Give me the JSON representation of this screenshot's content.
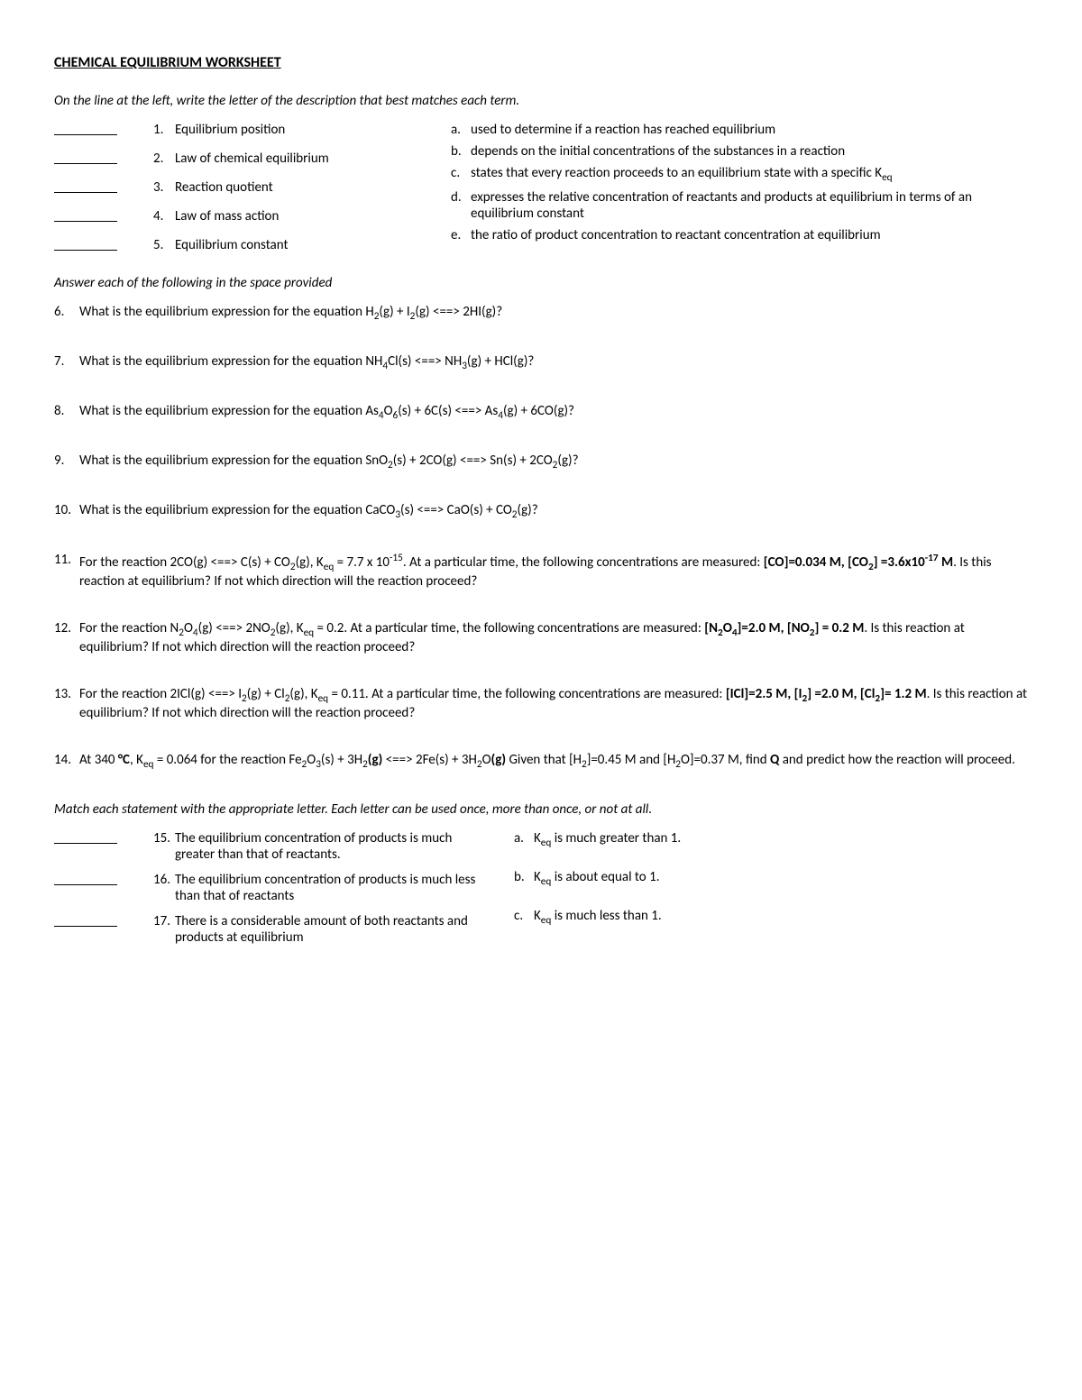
{
  "title": "CHEMICAL EQUILIBRIUM WORKSHEET",
  "instr1": "On the line at the left, write the letter of the description that best matches each term.",
  "matchTerms": [
    {
      "n": "1.",
      "t": "Equilibrium position"
    },
    {
      "n": "2.",
      "t": "Law of chemical equilibrium"
    },
    {
      "n": "3.",
      "t": "Reaction quotient"
    },
    {
      "n": "4.",
      "t": "Law of mass action"
    },
    {
      "n": "5.",
      "t": "Equilibrium constant"
    }
  ],
  "matchDefs": [
    {
      "l": "a.",
      "t": "used to determine if a reaction has reached equilibrium"
    },
    {
      "l": "b.",
      "t": "depends on the initial concentrations of the substances in a reaction"
    },
    {
      "l": "c.",
      "t": "states that every reaction proceeds to an equilibrium state with a specific K<sub>eq</sub>"
    },
    {
      "l": "d.",
      "t": "expresses the relative concentration of reactants and products at equilibrium in terms of an equilibrium constant"
    },
    {
      "l": "e.",
      "t": "the ratio of product concentration to reactant concentration at equilibrium"
    }
  ],
  "instr2": "Answer each of the following in the space provided",
  "questions": [
    {
      "n": "6.",
      "t": "What is the equilibrium expression for the equation H<sub>2</sub>(g) + I<sub>2</sub>(g) &lt;==&gt; 2HI(g)?"
    },
    {
      "n": "7.",
      "t": "What is the equilibrium expression for the equation NH<sub>4</sub>Cl(s) &lt;==&gt; NH<sub>3</sub>(g) + HCl(g)?"
    },
    {
      "n": "8.",
      "t": "What is the equilibrium expression for the equation As<sub>4</sub>O<sub>6</sub>(s) + 6C(s) &lt;==&gt; As<sub>4</sub>(g) + 6CO(g)?"
    },
    {
      "n": "9.",
      "t": "What is the equilibrium expression for the equation SnO<sub>2</sub>(s) + 2CO(g) &lt;==&gt; Sn(s) + 2CO<sub>2</sub>(g)?"
    },
    {
      "n": "10.",
      "t": "What is the equilibrium expression for the equation CaCO<sub>3</sub>(s) &lt;==&gt; CaO(s) + CO<sub>2</sub>(g)?"
    },
    {
      "n": "11.",
      "t": "For the reaction 2CO(g) &lt;==&gt; C(s) + CO<sub>2</sub>(g), K<sub>eq</sub> = 7.7 x 10<sup>-15</sup>.  At a particular time, the following concentrations are measured:  <span class='b'>[CO]=0.034 M, [CO<sub>2</sub>] =3.6x10<sup>-17</sup> M</span>.  Is this reaction at equilibrium?  If not which direction will the reaction proceed?"
    },
    {
      "n": "12.",
      "t": "For the reaction N<sub>2</sub>O<sub>4</sub>(g) &lt;==&gt; 2NO<sub>2</sub>(g), K<sub>eq</sub> = 0.2.  At a particular time, the following concentrations are measured: <span class='b'>[N<sub>2</sub>O<sub>4</sub>]=2.0 M, [NO<sub>2</sub>] = 0.2 M</span>.  Is this reaction at equilibrium?  If not which direction will the reaction proceed?"
    },
    {
      "n": "13.",
      "t": "For the reaction 2ICl(g) &lt;==&gt; I<sub>2</sub>(g) + Cl<sub>2</sub>(g), K<sub>eq</sub> = 0.11.  At a particular time, the following concentrations are measured:  <span class='b'>[ICl]=2.5 M, [I<sub>2</sub>] =2.0 M, [Cl<sub>2</sub>]= 1.2 M</span>.  Is this reaction at equilibrium?  If not which direction will the reaction proceed?"
    },
    {
      "n": "14.",
      "t": "At 340 <span class='b'>°C</span>, K<sub>eq</sub> = 0.064 for the reaction Fe<sub>2</sub>O<sub>3</sub>(s) + 3H<sub>2</sub><span class='b'>(g)</span> &lt;==&gt; 2Fe(s) + 3H<sub>2</sub>O<span class='b'>(g)</span> Given that [H<sub>2</sub>]=0.45 M and [H<sub>2</sub>O]=0.37 M, find <span class='b'>Q</span> and predict how the reaction will proceed."
    }
  ],
  "instr3": "Match each statement with the appropriate letter.  Each letter can be used once, more than once, or not at all.",
  "match2Left": [
    {
      "n": "15.",
      "t": "The equilibrium concentration of products is much greater than that of reactants."
    },
    {
      "n": "16.",
      "t": "The equilibrium concentration of products is much less than that of reactants"
    },
    {
      "n": "17.",
      "t": "There is a considerable amount of both reactants and products at equilibrium"
    }
  ],
  "match2Right": [
    {
      "l": "a.",
      "t": "K<sub>eq</sub> is much greater than 1."
    },
    {
      "l": "b.",
      "t": "K<sub>eq</sub> is about equal to 1."
    },
    {
      "l": "c.",
      "t": "K<sub>eq</sub> is much less than 1."
    }
  ]
}
